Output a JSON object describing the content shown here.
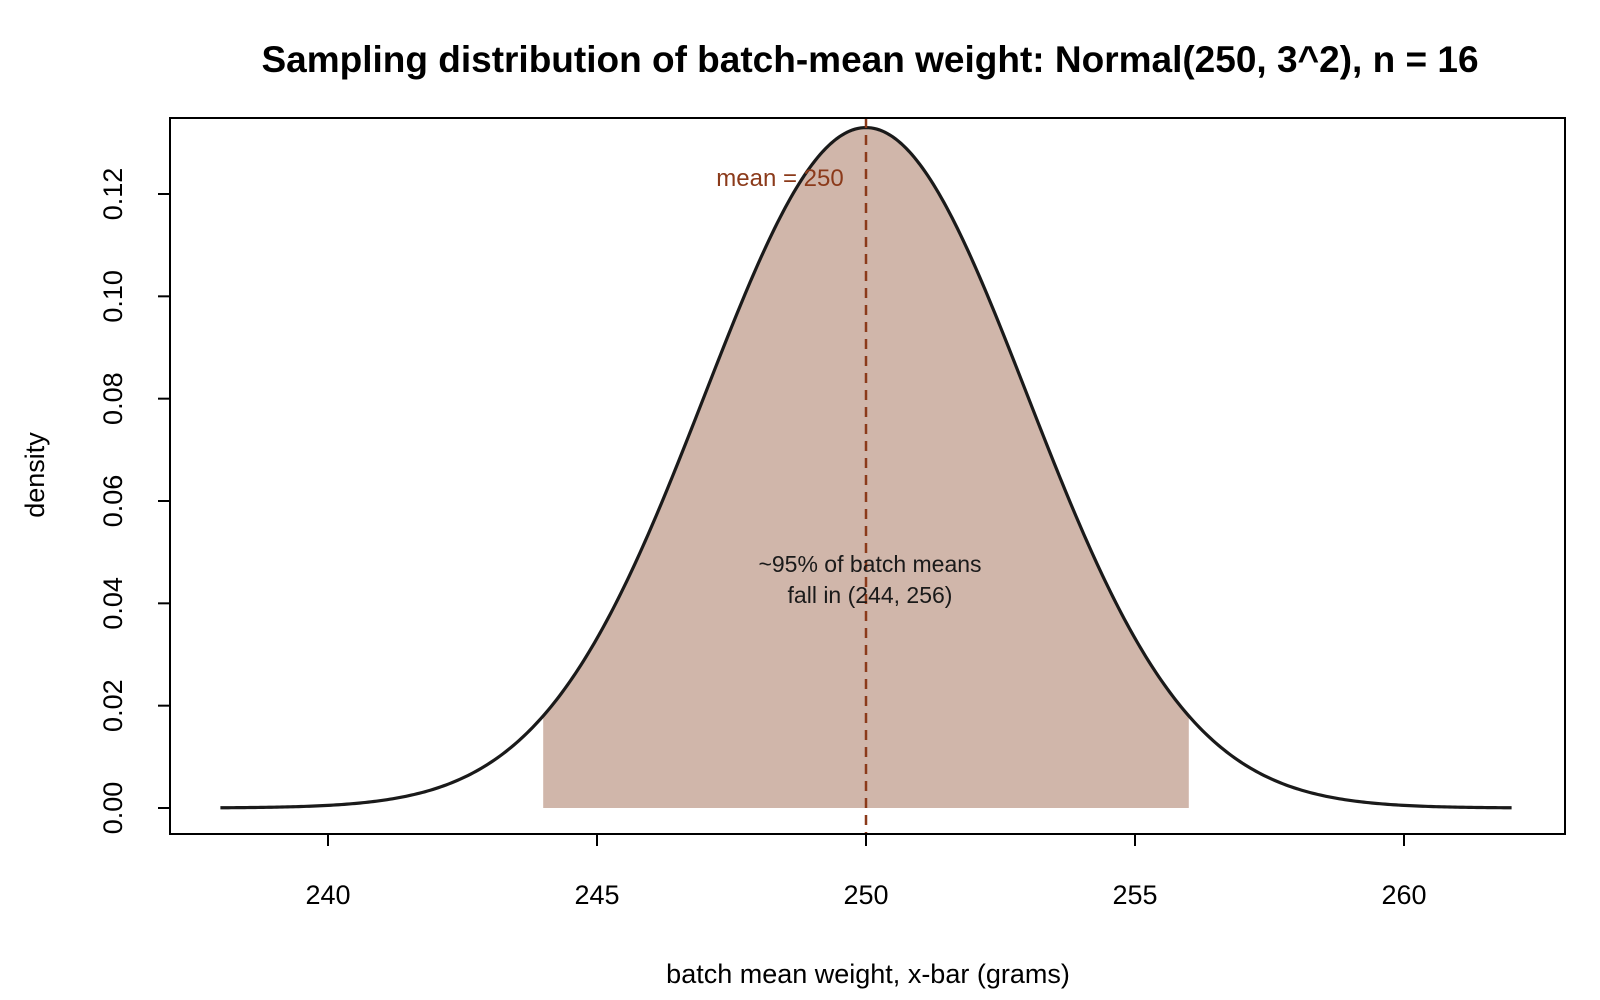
{
  "chart_data": {
    "type": "area",
    "title": "Sampling distribution of batch-mean weight: Normal(250, 3^2), n = 16",
    "xlabel": "batch mean weight, x-bar (grams)",
    "ylabel": "density",
    "xlim": [
      238,
      262
    ],
    "ylim": [
      0,
      0.133
    ],
    "x_ticks": [
      240,
      245,
      250,
      255,
      260
    ],
    "y_ticks": [
      0.0,
      0.02,
      0.04,
      0.06,
      0.08,
      0.1,
      0.12
    ],
    "y_tick_labels": [
      "0.00",
      "0.02",
      "0.04",
      "0.06",
      "0.08",
      "0.10",
      "0.12"
    ],
    "grid": false,
    "distribution": {
      "mean": 250,
      "sd": 3
    },
    "series": [
      {
        "x": [
          238,
          239,
          240,
          241,
          242,
          243,
          244,
          245,
          246,
          247,
          248,
          249,
          250,
          251,
          252,
          253,
          254,
          255,
          256,
          257,
          258,
          259,
          260,
          261,
          262
        ],
        "values": [
          0.0,
          0.0003,
          0.0006,
          0.0015,
          0.0038,
          0.0087,
          0.018,
          0.0332,
          0.0547,
          0.0807,
          0.1065,
          0.1258,
          0.133,
          0.1258,
          0.1065,
          0.0807,
          0.0547,
          0.0332,
          0.018,
          0.0087,
          0.0038,
          0.0015,
          0.0006,
          0.0003,
          0.0
        ]
      }
    ],
    "shaded_region": {
      "from": 244,
      "to": 256,
      "color": "#d0b6aa"
    },
    "mean_line": {
      "x": 250,
      "color": "#8b3a1a"
    },
    "annotations": {
      "mean_label": "mean = 250",
      "interval_line1": "~95% of batch means",
      "interval_line2": "fall in (244, 256)"
    },
    "colors": {
      "curve": "#1a1a1a",
      "shade": "#d0b6aa",
      "mean_line": "#8b3a1a"
    }
  }
}
